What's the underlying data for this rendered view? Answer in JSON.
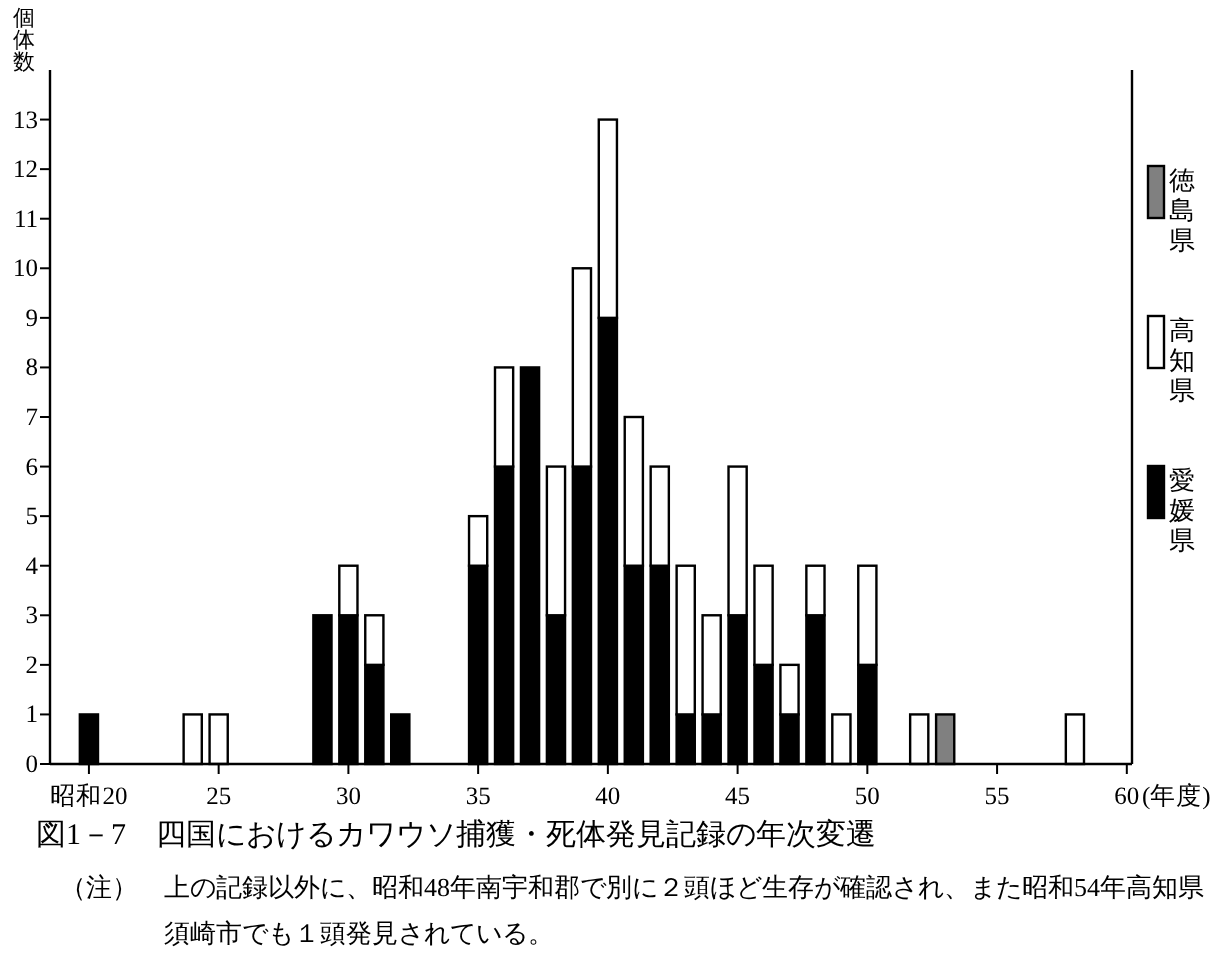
{
  "chart_data": {
    "type": "bar",
    "stacked": true,
    "title": "図1－7　四国におけるカワウソ捕獲・死体発見記録の年次変遷",
    "annotations": [
      "（注）　上の記録以外に、昭和48年南宇和郡で別に２頭ほど生存が確認され、また昭和54年高知県須崎市でも１頭発見されている。"
    ],
    "xlabel": "(年度)",
    "ylabel": "個体数",
    "x": [
      20,
      24,
      25,
      29,
      30,
      31,
      32,
      35,
      36,
      37,
      38,
      39,
      40,
      41,
      42,
      43,
      44,
      45,
      46,
      47,
      48,
      49,
      50,
      52,
      53,
      58
    ],
    "series": [
      {
        "name": "愛媛県",
        "color": "#000000",
        "values": [
          1,
          null,
          null,
          3,
          3,
          2,
          1,
          4,
          6,
          8,
          3,
          6,
          9,
          4,
          4,
          1,
          1,
          3,
          2,
          1,
          3,
          null,
          2,
          null,
          null,
          null
        ]
      },
      {
        "name": "高知県",
        "color": "#ffffff",
        "values": [
          null,
          1,
          1,
          null,
          1,
          1,
          null,
          1,
          2,
          null,
          3,
          4,
          4,
          3,
          2,
          3,
          2,
          3,
          2,
          1,
          1,
          1,
          2,
          1,
          null,
          1
        ]
      },
      {
        "name": "徳島県",
        "color": "#808080",
        "values": [
          null,
          null,
          null,
          null,
          null,
          null,
          null,
          null,
          null,
          null,
          null,
          null,
          null,
          null,
          null,
          null,
          null,
          null,
          null,
          null,
          null,
          null,
          null,
          null,
          1,
          null
        ]
      }
    ],
    "xlim": [
      18.5,
      60.2
    ],
    "ylim": [
      0,
      14
    ],
    "xticks": [
      {
        "value": 20,
        "label": "昭和20"
      },
      25,
      30,
      35,
      40,
      45,
      50,
      55,
      60
    ],
    "yticks": [
      0,
      1,
      2,
      3,
      4,
      5,
      6,
      7,
      8,
      9,
      10,
      11,
      12,
      13
    ],
    "legend": "right"
  }
}
